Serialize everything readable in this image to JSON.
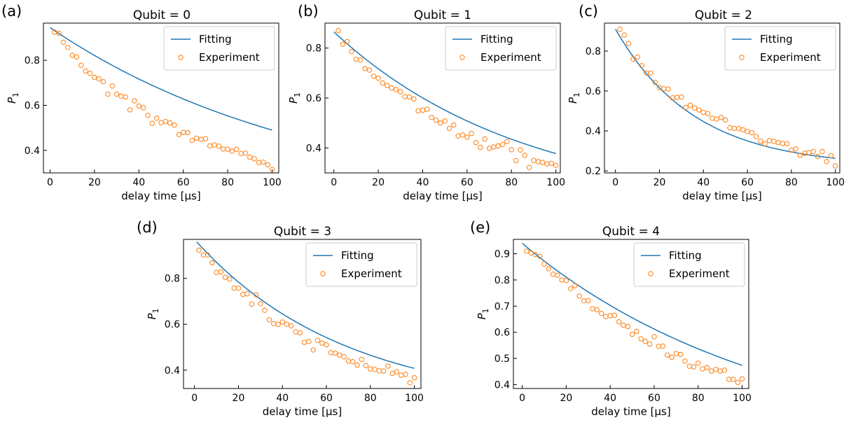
{
  "xlabel": "delay time [μs]",
  "ylabel_main": "P",
  "ylabel_sub": "1",
  "legend": {
    "fit": "Fitting",
    "exp": "Experiment",
    "placement": "top-right"
  },
  "colors": {
    "fit": "#1f77b4",
    "exp": "#ff7f0e"
  },
  "chart_data": [
    {
      "type": "scatter",
      "letter": "(a)",
      "title": "Qubit = 0",
      "xlim": [
        -3,
        103
      ],
      "ylim": [
        0.3,
        0.965
      ],
      "xticks": [
        0,
        20,
        40,
        60,
        80,
        100
      ],
      "yticks": [
        0.4,
        0.6,
        0.8
      ],
      "fit": {
        "x0": 0,
        "x1": 100,
        "offset": 0.14,
        "amplitude": 0.805,
        "decay_us": 120
      },
      "experiment": {
        "x": [
          2,
          4,
          6,
          8,
          10,
          12,
          14,
          16,
          18,
          20,
          22,
          24,
          26,
          28,
          30,
          32,
          34,
          36,
          38,
          40,
          42,
          44,
          46,
          48,
          50,
          52,
          54,
          56,
          58,
          60,
          62,
          64,
          66,
          68,
          70,
          72,
          74,
          76,
          78,
          80,
          82,
          84,
          86,
          88,
          90,
          92,
          94,
          96,
          98,
          100
        ],
        "y": [
          0.925,
          0.92,
          0.88,
          0.857,
          0.822,
          0.815,
          0.778,
          0.752,
          0.742,
          0.724,
          0.717,
          0.705,
          0.65,
          0.686,
          0.65,
          0.641,
          0.637,
          0.58,
          0.62,
          0.597,
          0.59,
          0.555,
          0.52,
          0.543,
          0.523,
          0.528,
          0.522,
          0.512,
          0.47,
          0.48,
          0.479,
          0.444,
          0.454,
          0.449,
          0.452,
          0.42,
          0.424,
          0.419,
          0.406,
          0.405,
          0.397,
          0.405,
          0.386,
          0.388,
          0.37,
          0.363,
          0.346,
          0.348,
          0.336,
          0.315
        ]
      }
    },
    {
      "type": "scatter",
      "letter": "(b)",
      "title": "Qubit = 1",
      "xlim": [
        -4,
        102
      ],
      "ylim": [
        0.3,
        0.9
      ],
      "xticks": [
        0,
        20,
        40,
        60,
        80,
        100
      ],
      "yticks": [
        0.4,
        0.6,
        0.8
      ],
      "fit": {
        "x0": 0,
        "x1": 100,
        "offset": 0.16,
        "amplitude": 0.705,
        "decay_us": 85
      },
      "experiment": {
        "x": [
          2,
          4,
          6,
          8,
          10,
          12,
          14,
          16,
          18,
          20,
          22,
          24,
          26,
          28,
          30,
          32,
          34,
          36,
          38,
          40,
          42,
          44,
          46,
          48,
          50,
          52,
          54,
          56,
          58,
          60,
          62,
          64,
          66,
          68,
          70,
          72,
          74,
          76,
          78,
          80,
          82,
          84,
          86,
          88,
          90,
          92,
          94,
          96,
          98,
          100
        ],
        "y": [
          0.87,
          0.815,
          0.826,
          0.786,
          0.755,
          0.752,
          0.718,
          0.712,
          0.687,
          0.679,
          0.66,
          0.65,
          0.64,
          0.634,
          0.625,
          0.605,
          0.604,
          0.596,
          0.549,
          0.551,
          0.555,
          0.522,
          0.511,
          0.5,
          0.508,
          0.478,
          0.492,
          0.448,
          0.452,
          0.443,
          0.458,
          0.421,
          0.402,
          0.436,
          0.398,
          0.404,
          0.408,
          0.414,
          0.426,
          0.393,
          0.349,
          0.392,
          0.37,
          0.322,
          0.35,
          0.345,
          0.342,
          0.336,
          0.338,
          0.33
        ]
      }
    },
    {
      "type": "scatter",
      "letter": "(c)",
      "title": "Qubit = 2",
      "xlim": [
        -5,
        102
      ],
      "ylim": [
        0.19,
        0.94
      ],
      "xticks": [
        0,
        20,
        40,
        60,
        80,
        100
      ],
      "yticks": [
        0.2,
        0.4,
        0.6,
        0.8
      ],
      "fit": {
        "x0": 0,
        "x1": 100,
        "offset": 0.22,
        "amplitude": 0.69,
        "decay_us": 36
      },
      "experiment": {
        "x": [
          2,
          4,
          6,
          8,
          10,
          12,
          14,
          16,
          18,
          20,
          22,
          24,
          26,
          28,
          30,
          32,
          34,
          36,
          38,
          40,
          42,
          44,
          46,
          48,
          50,
          52,
          54,
          56,
          58,
          60,
          62,
          64,
          66,
          68,
          70,
          72,
          74,
          76,
          78,
          80,
          82,
          84,
          86,
          88,
          90,
          92,
          94,
          96,
          98,
          100
        ],
        "y": [
          0.91,
          0.88,
          0.838,
          0.76,
          0.77,
          0.727,
          0.69,
          0.69,
          0.643,
          0.617,
          0.612,
          0.61,
          0.566,
          0.568,
          0.57,
          0.518,
          0.529,
          0.515,
          0.505,
          0.493,
          0.487,
          0.464,
          0.46,
          0.468,
          0.455,
          0.416,
          0.413,
          0.412,
          0.406,
          0.398,
          0.391,
          0.372,
          0.349,
          0.336,
          0.352,
          0.348,
          0.342,
          0.337,
          0.337,
          0.304,
          0.31,
          0.278,
          0.288,
          0.292,
          0.297,
          0.272,
          0.297,
          0.247,
          0.276,
          0.225
        ]
      }
    },
    {
      "type": "scatter",
      "letter": "(d)",
      "title": "Qubit = 3",
      "xlim": [
        -5,
        103
      ],
      "ylim": [
        0.32,
        0.97
      ],
      "xticks": [
        0,
        20,
        40,
        60,
        80,
        100
      ],
      "yticks": [
        0.4,
        0.6,
        0.8
      ],
      "fit": {
        "x0": 1,
        "x1": 100,
        "offset": 0.24,
        "amplitude": 0.73,
        "decay_us": 68
      },
      "experiment": {
        "x": [
          2,
          4,
          6,
          8,
          10,
          12,
          14,
          16,
          18,
          20,
          22,
          24,
          26,
          28,
          30,
          32,
          34,
          36,
          38,
          40,
          42,
          44,
          46,
          48,
          50,
          52,
          54,
          56,
          58,
          60,
          62,
          64,
          66,
          68,
          70,
          72,
          74,
          76,
          78,
          80,
          82,
          84,
          86,
          88,
          90,
          92,
          94,
          96,
          98,
          100
        ],
        "y": [
          0.923,
          0.902,
          0.902,
          0.868,
          0.826,
          0.828,
          0.805,
          0.797,
          0.758,
          0.757,
          0.73,
          0.733,
          0.688,
          0.728,
          0.69,
          0.661,
          0.62,
          0.603,
          0.6,
          0.61,
          0.6,
          0.593,
          0.567,
          0.563,
          0.521,
          0.525,
          0.488,
          0.53,
          0.518,
          0.51,
          0.476,
          0.474,
          0.466,
          0.459,
          0.44,
          0.437,
          0.422,
          0.447,
          0.42,
          0.405,
          0.403,
          0.397,
          0.396,
          0.418,
          0.386,
          0.393,
          0.378,
          0.382,
          0.345,
          0.367
        ]
      }
    },
    {
      "type": "scatter",
      "letter": "(e)",
      "title": "Qubit = 4",
      "xlim": [
        -4,
        103
      ],
      "ylim": [
        0.385,
        0.955
      ],
      "xticks": [
        0,
        20,
        40,
        60,
        80,
        100
      ],
      "yticks": [
        0.4,
        0.5,
        0.6,
        0.7,
        0.8,
        0.9
      ],
      "fit": {
        "x0": 0,
        "x1": 100,
        "offset": 0.15,
        "amplitude": 0.79,
        "decay_us": 112
      },
      "experiment": {
        "x": [
          2,
          4,
          6,
          8,
          10,
          12,
          14,
          16,
          18,
          20,
          22,
          24,
          26,
          28,
          30,
          32,
          34,
          36,
          38,
          40,
          42,
          44,
          46,
          48,
          50,
          52,
          54,
          56,
          58,
          60,
          62,
          64,
          66,
          68,
          70,
          72,
          74,
          76,
          78,
          80,
          82,
          84,
          86,
          88,
          90,
          92,
          94,
          96,
          98,
          100
        ],
        "y": [
          0.91,
          0.903,
          0.897,
          0.89,
          0.861,
          0.843,
          0.822,
          0.818,
          0.8,
          0.798,
          0.767,
          0.778,
          0.738,
          0.72,
          0.721,
          0.69,
          0.686,
          0.672,
          0.66,
          0.663,
          0.665,
          0.64,
          0.627,
          0.622,
          0.592,
          0.603,
          0.575,
          0.565,
          0.555,
          0.583,
          0.546,
          0.547,
          0.513,
          0.504,
          0.519,
          0.515,
          0.49,
          0.47,
          0.468,
          0.482,
          0.46,
          0.465,
          0.452,
          0.458,
          0.452,
          0.455,
          0.42,
          0.42,
          0.408,
          0.422
        ]
      }
    }
  ]
}
